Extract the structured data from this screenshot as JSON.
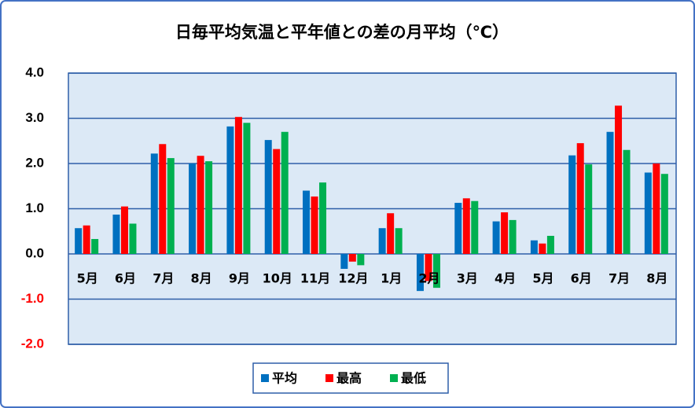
{
  "chart_data": {
    "type": "bar",
    "title": "日毎平均気温と平年値との差の月平均（℃）",
    "categories": [
      "5月",
      "6月",
      "7月",
      "8月",
      "9月",
      "10月",
      "11月",
      "12月",
      "1月",
      "2月",
      "3月",
      "4月",
      "5月",
      "6月",
      "7月",
      "8月"
    ],
    "series": [
      {
        "name": "平均",
        "color": "#0070c0",
        "values": [
          0.57,
          0.87,
          2.22,
          2.0,
          2.82,
          2.52,
          1.4,
          -0.33,
          0.57,
          -0.82,
          1.13,
          0.72,
          0.3,
          2.18,
          2.7,
          1.8
        ]
      },
      {
        "name": "最高",
        "color": "#ff0000",
        "values": [
          0.63,
          1.05,
          2.43,
          2.17,
          3.03,
          2.32,
          1.27,
          -0.17,
          0.9,
          -0.6,
          1.23,
          0.92,
          0.23,
          2.45,
          3.28,
          2.0
        ]
      },
      {
        "name": "最低",
        "color": "#00b050",
        "values": [
          0.33,
          0.67,
          2.12,
          2.05,
          2.9,
          2.7,
          1.58,
          -0.25,
          0.57,
          -0.75,
          1.17,
          0.75,
          0.4,
          1.98,
          2.3,
          1.77
        ]
      }
    ],
    "ylim": [
      -2,
      4
    ],
    "yticks": [
      {
        "value": 4,
        "label": "4.0"
      },
      {
        "value": 3,
        "label": "3.0"
      },
      {
        "value": 2,
        "label": "2.0"
      },
      {
        "value": 1,
        "label": "1.0"
      },
      {
        "value": 0,
        "label": "0.0"
      },
      {
        "value": -1,
        "label": "-1.0"
      },
      {
        "value": -2,
        "label": "-2.0"
      }
    ],
    "grid": true,
    "legend": "bottom"
  }
}
